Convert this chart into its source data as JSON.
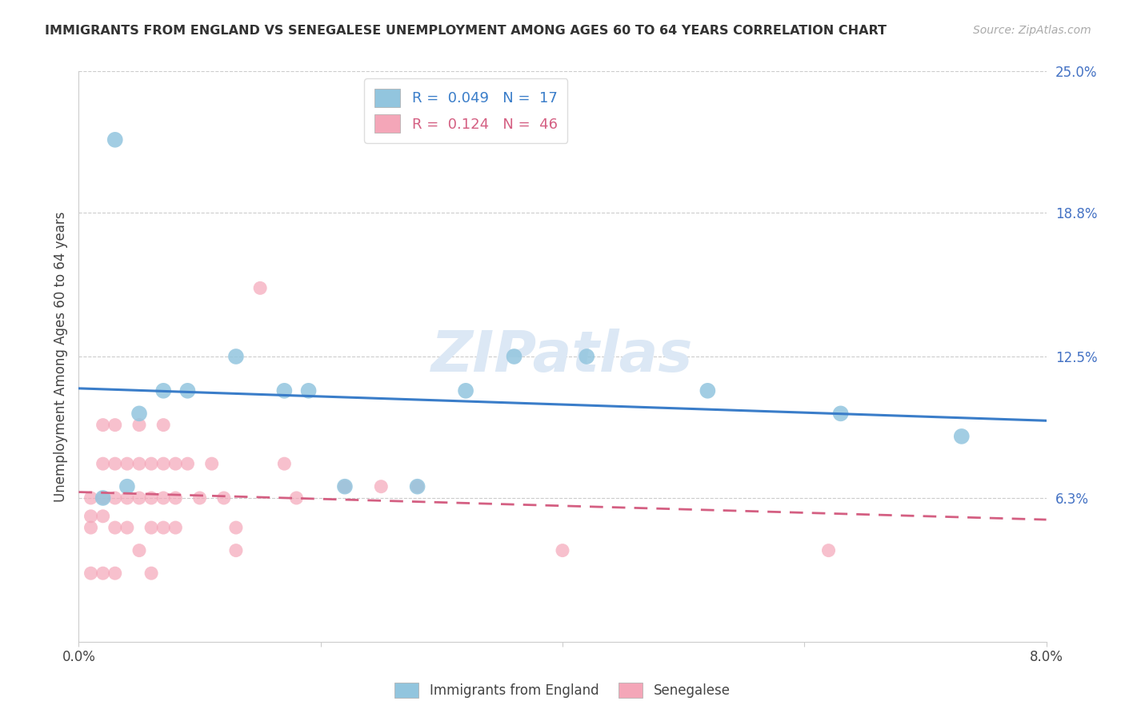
{
  "title": "IMMIGRANTS FROM ENGLAND VS SENEGALESE UNEMPLOYMENT AMONG AGES 60 TO 64 YEARS CORRELATION CHART",
  "source": "Source: ZipAtlas.com",
  "ylabel": "Unemployment Among Ages 60 to 64 years",
  "xlim": [
    0.0,
    0.08
  ],
  "ylim": [
    0.0,
    0.25
  ],
  "right_ytick_labels": [
    "6.3%",
    "12.5%",
    "18.8%",
    "25.0%"
  ],
  "right_ytick_values": [
    0.063,
    0.125,
    0.188,
    0.25
  ],
  "xtick_labels": [
    "0.0%",
    "",
    "",
    "",
    "8.0%"
  ],
  "xtick_values": [
    0.0,
    0.02,
    0.04,
    0.06,
    0.08
  ],
  "blue_R": 0.049,
  "blue_N": 17,
  "pink_R": 0.124,
  "pink_N": 46,
  "blue_color": "#92c5de",
  "pink_color": "#f4a6b8",
  "blue_line_color": "#3a7dc9",
  "pink_line_color": "#d45f82",
  "watermark_text": "ZIPatlas",
  "background_color": "#ffffff",
  "grid_color": "#cccccc",
  "blue_points_x": [
    0.002,
    0.003,
    0.004,
    0.005,
    0.007,
    0.009,
    0.013,
    0.017,
    0.019,
    0.022,
    0.028,
    0.032,
    0.036,
    0.042,
    0.052,
    0.063,
    0.073
  ],
  "blue_points_y": [
    0.063,
    0.22,
    0.068,
    0.1,
    0.11,
    0.11,
    0.125,
    0.11,
    0.11,
    0.068,
    0.068,
    0.11,
    0.125,
    0.125,
    0.11,
    0.1,
    0.09
  ],
  "pink_points_x": [
    0.001,
    0.001,
    0.001,
    0.001,
    0.002,
    0.002,
    0.002,
    0.002,
    0.002,
    0.003,
    0.003,
    0.003,
    0.003,
    0.003,
    0.004,
    0.004,
    0.004,
    0.005,
    0.005,
    0.005,
    0.005,
    0.006,
    0.006,
    0.006,
    0.006,
    0.007,
    0.007,
    0.007,
    0.007,
    0.008,
    0.008,
    0.008,
    0.009,
    0.01,
    0.011,
    0.012,
    0.013,
    0.013,
    0.015,
    0.017,
    0.018,
    0.022,
    0.025,
    0.028,
    0.04,
    0.062
  ],
  "pink_points_y": [
    0.063,
    0.055,
    0.05,
    0.03,
    0.095,
    0.078,
    0.063,
    0.055,
    0.03,
    0.095,
    0.078,
    0.063,
    0.05,
    0.03,
    0.078,
    0.063,
    0.05,
    0.095,
    0.078,
    0.063,
    0.04,
    0.078,
    0.063,
    0.05,
    0.03,
    0.095,
    0.078,
    0.063,
    0.05,
    0.078,
    0.063,
    0.05,
    0.078,
    0.063,
    0.078,
    0.063,
    0.05,
    0.04,
    0.155,
    0.078,
    0.063,
    0.068,
    0.068,
    0.068,
    0.04,
    0.04
  ]
}
